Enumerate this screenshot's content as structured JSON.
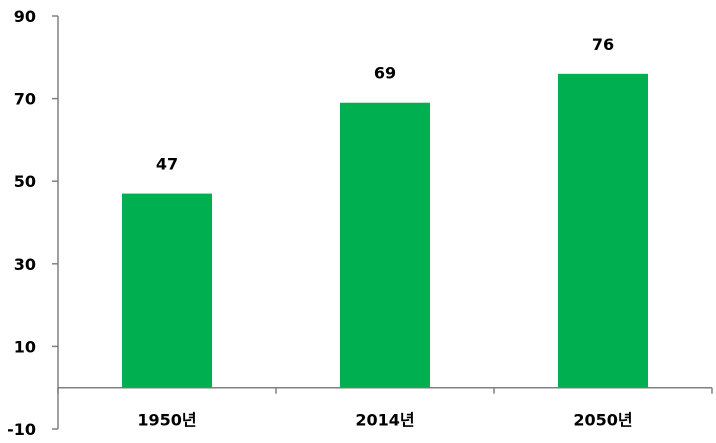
{
  "chart_data": {
    "type": "bar",
    "categories": [
      "1950년",
      "2014년",
      "2050년"
    ],
    "values": [
      47,
      69,
      76
    ],
    "data_labels": [
      "47",
      "69",
      "76"
    ],
    "ylim": [
      -10,
      90
    ],
    "y_ticks": [
      -10,
      10,
      30,
      50,
      70,
      90
    ],
    "y_tick_labels": [
      "-10",
      "10",
      "30",
      "50",
      "70",
      "90"
    ],
    "grid": false,
    "legend": "none",
    "bar_color": "#00B050",
    "axis_color": "#808080"
  }
}
